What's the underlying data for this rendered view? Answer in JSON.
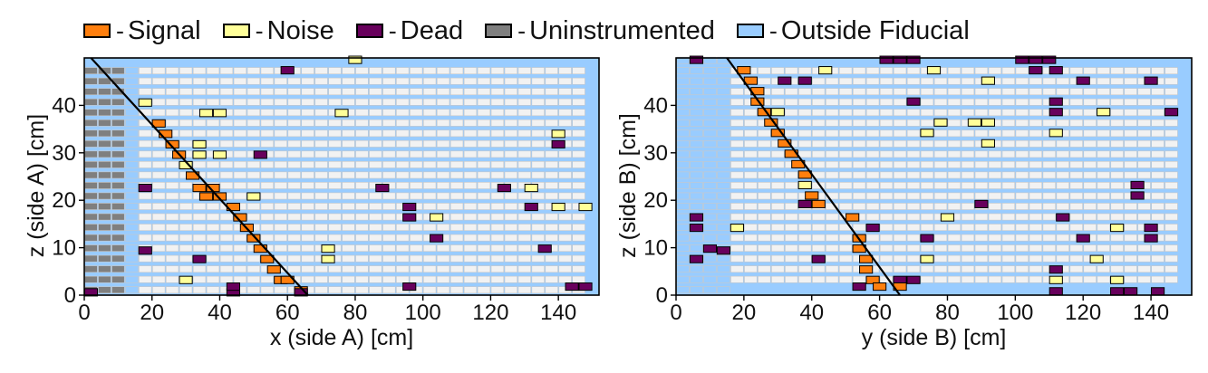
{
  "legend": {
    "items": [
      {
        "key": "signal",
        "label": "Signal",
        "color": "#ff7f0e"
      },
      {
        "key": "noise",
        "label": "Noise",
        "color": "#ffff99"
      },
      {
        "key": "dead",
        "label": "Dead",
        "color": "#68005c"
      },
      {
        "key": "uninstrumented",
        "label": "Uninstrumented",
        "color": "#7f7f7f"
      },
      {
        "key": "outside",
        "label": "Outside Fiducial",
        "color": "#99ccff"
      }
    ],
    "empty_color": "#f2f2f2",
    "separator": "-"
  },
  "chart_data": [
    {
      "type": "heatmap",
      "name": "side-a",
      "xlabel": "x (side A) [cm]",
      "ylabel": "z (side A) [cm]",
      "xlim": [
        0,
        152
      ],
      "ylim": [
        0,
        50
      ],
      "xticks": [
        0,
        20,
        40,
        60,
        80,
        100,
        120,
        140
      ],
      "yticks": [
        0,
        10,
        20,
        30,
        40
      ],
      "cell_width": 4,
      "row_pitch": 2.2,
      "base_fill": "outside",
      "ranges": [
        {
          "x0": 0,
          "x1": 12,
          "type": "uninstrumented",
          "rows": [
            0,
            21
          ]
        },
        {
          "x0": 12,
          "x1": 16,
          "type": "outside",
          "rows": [
            0,
            21
          ]
        },
        {
          "x0": 16,
          "x1": 148,
          "type": "empty",
          "rows": [
            0,
            21
          ]
        }
      ],
      "hits": [
        {
          "x": 16,
          "z": 9.4,
          "type": "dead"
        },
        {
          "x": 16,
          "z": 22.6,
          "type": "dead"
        },
        {
          "x": 0,
          "z": 0.6,
          "type": "dead"
        },
        {
          "x": 16,
          "z": 40.6,
          "type": "noise"
        },
        {
          "x": 20,
          "z": 36.2,
          "type": "signal"
        },
        {
          "x": 22,
          "z": 34.0,
          "type": "signal"
        },
        {
          "x": 24,
          "z": 31.8,
          "type": "signal"
        },
        {
          "x": 26,
          "z": 29.6,
          "type": "signal"
        },
        {
          "x": 28,
          "z": 27.4,
          "type": "noise"
        },
        {
          "x": 30,
          "z": 25.2,
          "type": "signal"
        },
        {
          "x": 32,
          "z": 29.6,
          "type": "noise"
        },
        {
          "x": 32,
          "z": 31.8,
          "type": "noise"
        },
        {
          "x": 34,
          "z": 38.4,
          "type": "noise"
        },
        {
          "x": 38,
          "z": 38.4,
          "type": "noise"
        },
        {
          "x": 34,
          "z": 20.8,
          "type": "noise"
        },
        {
          "x": 32,
          "z": 22.6,
          "type": "signal"
        },
        {
          "x": 34,
          "z": 20.8,
          "type": "signal"
        },
        {
          "x": 38,
          "z": 20.8,
          "type": "signal"
        },
        {
          "x": 38,
          "z": 29.6,
          "type": "noise"
        },
        {
          "x": 36,
          "z": 22.6,
          "type": "signal"
        },
        {
          "x": 42,
          "z": 18.6,
          "type": "signal"
        },
        {
          "x": 44,
          "z": 16.4,
          "type": "signal"
        },
        {
          "x": 46,
          "z": 14.2,
          "type": "signal"
        },
        {
          "x": 48,
          "z": 12.0,
          "type": "signal"
        },
        {
          "x": 50,
          "z": 9.8,
          "type": "signal"
        },
        {
          "x": 52,
          "z": 7.6,
          "type": "signal"
        },
        {
          "x": 54,
          "z": 5.4,
          "type": "signal"
        },
        {
          "x": 56,
          "z": 3.2,
          "type": "signal"
        },
        {
          "x": 58,
          "z": 3.2,
          "type": "signal"
        },
        {
          "x": 62,
          "z": 1.0,
          "type": "signal"
        },
        {
          "x": 32,
          "z": 7.6,
          "type": "dead"
        },
        {
          "x": 42,
          "z": 0.6,
          "type": "dead"
        },
        {
          "x": 42,
          "z": 1.8,
          "type": "dead"
        },
        {
          "x": 28,
          "z": 3.2,
          "type": "noise"
        },
        {
          "x": 48,
          "z": 20.8,
          "type": "noise"
        },
        {
          "x": 50,
          "z": 29.6,
          "type": "dead"
        },
        {
          "x": 58,
          "z": 47.4,
          "type": "dead"
        },
        {
          "x": 62,
          "z": 0.6,
          "type": "dead"
        },
        {
          "x": 70,
          "z": 7.6,
          "type": "noise"
        },
        {
          "x": 70,
          "z": 9.8,
          "type": "noise"
        },
        {
          "x": 74,
          "z": 38.4,
          "type": "noise"
        },
        {
          "x": 78,
          "z": 49.6,
          "type": "noise"
        },
        {
          "x": 86,
          "z": 22.6,
          "type": "dead"
        },
        {
          "x": 94,
          "z": 1.8,
          "type": "dead"
        },
        {
          "x": 94,
          "z": 16.4,
          "type": "dead"
        },
        {
          "x": 94,
          "z": 18.6,
          "type": "dead"
        },
        {
          "x": 102,
          "z": 12.0,
          "type": "dead"
        },
        {
          "x": 102,
          "z": 16.4,
          "type": "noise"
        },
        {
          "x": 122,
          "z": 22.6,
          "type": "dead"
        },
        {
          "x": 130,
          "z": 18.6,
          "type": "dead"
        },
        {
          "x": 130,
          "z": 22.6,
          "type": "noise"
        },
        {
          "x": 134,
          "z": 9.8,
          "type": "dead"
        },
        {
          "x": 138,
          "z": 18.6,
          "type": "noise"
        },
        {
          "x": 138,
          "z": 31.8,
          "type": "dead"
        },
        {
          "x": 138,
          "z": 34.0,
          "type": "noise"
        },
        {
          "x": 142,
          "z": 1.8,
          "type": "dead"
        },
        {
          "x": 146,
          "z": 1.8,
          "type": "dead"
        },
        {
          "x": 146,
          "z": 18.6,
          "type": "noise"
        }
      ],
      "line": [
        [
          2,
          50
        ],
        [
          66,
          0
        ]
      ]
    },
    {
      "type": "heatmap",
      "name": "side-b",
      "xlabel": "y (side B) [cm]",
      "ylabel": "z (side B) [cm]",
      "xlim": [
        0,
        152
      ],
      "ylim": [
        0,
        50
      ],
      "xticks": [
        0,
        20,
        40,
        60,
        80,
        100,
        120,
        140
      ],
      "yticks": [
        0,
        10,
        20,
        30,
        40
      ],
      "cell_width": 4,
      "row_pitch": 2.2,
      "base_fill": "outside",
      "ranges": [
        {
          "x0": 0,
          "x1": 16,
          "type": "outside",
          "rows": [
            0,
            22
          ]
        },
        {
          "x0": 16,
          "x1": 148,
          "type": "empty",
          "rows": [
            1,
            21
          ]
        }
      ],
      "hits": [
        {
          "x": 4,
          "z": 49.6,
          "type": "dead"
        },
        {
          "x": 4,
          "z": 7.6,
          "type": "dead"
        },
        {
          "x": 4,
          "z": 14.2,
          "type": "dead"
        },
        {
          "x": 4,
          "z": 16.4,
          "type": "dead"
        },
        {
          "x": 8,
          "z": 9.8,
          "type": "dead"
        },
        {
          "x": 12,
          "z": 9.4,
          "type": "dead"
        },
        {
          "x": 16,
          "z": 14.2,
          "type": "noise"
        },
        {
          "x": 18,
          "z": 47.4,
          "type": "signal"
        },
        {
          "x": 20,
          "z": 45.2,
          "type": "signal"
        },
        {
          "x": 22,
          "z": 43.0,
          "type": "signal"
        },
        {
          "x": 22,
          "z": 40.8,
          "type": "signal"
        },
        {
          "x": 24,
          "z": 38.6,
          "type": "signal"
        },
        {
          "x": 26,
          "z": 36.4,
          "type": "signal"
        },
        {
          "x": 28,
          "z": 34.2,
          "type": "signal"
        },
        {
          "x": 28,
          "z": 38.6,
          "type": "noise"
        },
        {
          "x": 30,
          "z": 32.0,
          "type": "signal"
        },
        {
          "x": 32,
          "z": 29.8,
          "type": "signal"
        },
        {
          "x": 34,
          "z": 27.6,
          "type": "signal"
        },
        {
          "x": 36,
          "z": 25.4,
          "type": "signal"
        },
        {
          "x": 36,
          "z": 23.2,
          "type": "noise"
        },
        {
          "x": 38,
          "z": 21.0,
          "type": "signal"
        },
        {
          "x": 40,
          "z": 19.2,
          "type": "signal"
        },
        {
          "x": 30,
          "z": 45.2,
          "type": "dead"
        },
        {
          "x": 36,
          "z": 45.2,
          "type": "dead"
        },
        {
          "x": 36,
          "z": 19.2,
          "type": "dead"
        },
        {
          "x": 42,
          "z": 47.4,
          "type": "noise"
        },
        {
          "x": 50,
          "z": 16.4,
          "type": "signal"
        },
        {
          "x": 52,
          "z": 12.0,
          "type": "signal"
        },
        {
          "x": 52,
          "z": 9.8,
          "type": "signal"
        },
        {
          "x": 54,
          "z": 7.6,
          "type": "signal"
        },
        {
          "x": 54,
          "z": 5.4,
          "type": "signal"
        },
        {
          "x": 56,
          "z": 3.2,
          "type": "signal"
        },
        {
          "x": 58,
          "z": 1.8,
          "type": "signal"
        },
        {
          "x": 40,
          "z": 7.6,
          "type": "dead"
        },
        {
          "x": 52,
          "z": 1.8,
          "type": "dead"
        },
        {
          "x": 56,
          "z": 14.2,
          "type": "dead"
        },
        {
          "x": 60,
          "z": 49.6,
          "type": "dead"
        },
        {
          "x": 64,
          "z": 49.6,
          "type": "dead"
        },
        {
          "x": 68,
          "z": 49.6,
          "type": "dead"
        },
        {
          "x": 64,
          "z": 3.2,
          "type": "dead"
        },
        {
          "x": 68,
          "z": 3.2,
          "type": "dead"
        },
        {
          "x": 64,
          "z": 1.8,
          "type": "signal"
        },
        {
          "x": 68,
          "z": 40.8,
          "type": "dead"
        },
        {
          "x": 72,
          "z": 7.6,
          "type": "noise"
        },
        {
          "x": 72,
          "z": 12.0,
          "type": "dead"
        },
        {
          "x": 72,
          "z": 34.2,
          "type": "noise"
        },
        {
          "x": 74,
          "z": 47.4,
          "type": "noise"
        },
        {
          "x": 76,
          "z": 36.4,
          "type": "noise"
        },
        {
          "x": 78,
          "z": 16.4,
          "type": "noise"
        },
        {
          "x": 86,
          "z": 36.4,
          "type": "noise"
        },
        {
          "x": 88,
          "z": 19.2,
          "type": "dead"
        },
        {
          "x": 90,
          "z": 32.0,
          "type": "noise"
        },
        {
          "x": 90,
          "z": 36.4,
          "type": "noise"
        },
        {
          "x": 90,
          "z": 45.2,
          "type": "noise"
        },
        {
          "x": 100,
          "z": 49.6,
          "type": "dead"
        },
        {
          "x": 104,
          "z": 49.6,
          "type": "dead"
        },
        {
          "x": 108,
          "z": 49.6,
          "type": "dead"
        },
        {
          "x": 104,
          "z": 47.4,
          "type": "dead"
        },
        {
          "x": 110,
          "z": 47.4,
          "type": "dead"
        },
        {
          "x": 110,
          "z": 40.8,
          "type": "dead"
        },
        {
          "x": 110,
          "z": 38.6,
          "type": "dead"
        },
        {
          "x": 110,
          "z": 34.2,
          "type": "noise"
        },
        {
          "x": 110,
          "z": 5.4,
          "type": "dead"
        },
        {
          "x": 110,
          "z": 3.2,
          "type": "noise"
        },
        {
          "x": 110,
          "z": 0.8,
          "type": "dead"
        },
        {
          "x": 112,
          "z": 16.4,
          "type": "dead"
        },
        {
          "x": 118,
          "z": 12.0,
          "type": "dead"
        },
        {
          "x": 118,
          "z": 45.2,
          "type": "dead"
        },
        {
          "x": 122,
          "z": 7.6,
          "type": "noise"
        },
        {
          "x": 124,
          "z": 38.6,
          "type": "noise"
        },
        {
          "x": 128,
          "z": 14.2,
          "type": "noise"
        },
        {
          "x": 128,
          "z": 3.2,
          "type": "noise"
        },
        {
          "x": 128,
          "z": 0.8,
          "type": "dead"
        },
        {
          "x": 132,
          "z": 0.8,
          "type": "dead"
        },
        {
          "x": 134,
          "z": 21.0,
          "type": "dead"
        },
        {
          "x": 134,
          "z": 23.2,
          "type": "dead"
        },
        {
          "x": 138,
          "z": 12.0,
          "type": "dead"
        },
        {
          "x": 138,
          "z": 14.2,
          "type": "dead"
        },
        {
          "x": 138,
          "z": 45.2,
          "type": "dead"
        },
        {
          "x": 140,
          "z": 0.8,
          "type": "dead"
        },
        {
          "x": 144,
          "z": 38.6,
          "type": "dead"
        }
      ],
      "line": [
        [
          15,
          50
        ],
        [
          66,
          0
        ]
      ]
    }
  ]
}
